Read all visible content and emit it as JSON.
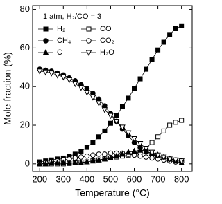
{
  "chart_data": {
    "type": "line",
    "annotation": "1 atm, H₂/CO = 3",
    "xlabel": "Temperature (°C)",
    "ylabel": "Mole fraction (%)",
    "x": [
      200,
      225,
      250,
      275,
      300,
      325,
      350,
      375,
      400,
      425,
      450,
      475,
      500,
      525,
      550,
      575,
      600,
      625,
      650,
      675,
      700,
      725,
      750,
      775,
      800
    ],
    "xlim": [
      170,
      845
    ],
    "xticks": [
      200,
      300,
      400,
      500,
      600,
      700,
      800
    ],
    "ylim": [
      -4,
      82
    ],
    "yticks": [
      0,
      20,
      40,
      60,
      80
    ],
    "legend": "upper left",
    "series": [
      {
        "name": "H₂",
        "color": "#000000",
        "marker": "square",
        "filled": true,
        "values": [
          1,
          1.5,
          2,
          2.5,
          3,
          4,
          5,
          6.5,
          8.5,
          11,
          14,
          17,
          21,
          25,
          29.5,
          34,
          39,
          44,
          49,
          54,
          59,
          63,
          67,
          70,
          71.5
        ]
      },
      {
        "name": "CO",
        "color": "#000000",
        "marker": "square",
        "filled": false,
        "values": [
          0,
          0,
          0,
          0,
          0,
          0.2,
          0.5,
          0.8,
          1,
          1.5,
          2,
          2.5,
          3,
          3.5,
          4,
          4.5,
          5,
          6,
          8,
          11,
          14,
          17,
          20,
          21.5,
          22.5
        ]
      },
      {
        "name": "CH₄",
        "color": "#000000",
        "marker": "circle",
        "filled": true,
        "values": [
          49,
          48.5,
          48,
          47,
          46,
          44.5,
          43,
          41,
          39,
          36.5,
          33.5,
          30,
          26,
          22,
          18,
          14.5,
          11,
          8.5,
          6.5,
          5,
          4,
          3,
          2.5,
          2,
          1.5
        ]
      },
      {
        "name": "CO₂",
        "color": "#000000",
        "marker": "circle",
        "filled": false,
        "values": [
          0,
          0.5,
          1,
          1.5,
          2,
          2.5,
          3,
          3.5,
          4,
          4.5,
          5,
          5,
          5.5,
          5.5,
          5.5,
          5,
          4.5,
          4,
          3.5,
          3,
          2.5,
          2,
          1.5,
          1,
          0.8
        ]
      },
      {
        "name": "C",
        "color": "#000000",
        "marker": "triangle",
        "filled": true,
        "values": [
          0,
          0,
          0.5,
          0.5,
          0.5,
          0.5,
          0.5,
          0.5,
          1,
          1.5,
          2,
          2.5,
          3,
          4,
          5,
          6,
          6.5,
          7,
          6.5,
          5.5,
          4.5,
          3.5,
          2.5,
          1.5,
          0.5
        ]
      },
      {
        "name": "H₂O",
        "color": "#000000",
        "marker": "triangle-down",
        "filled": false,
        "values": [
          48,
          47.5,
          47,
          46,
          45,
          43.5,
          41.5,
          39.5,
          37,
          34.5,
          31.5,
          28,
          25,
          22,
          19,
          16,
          13,
          10.5,
          8,
          6,
          4.5,
          3.5,
          2.5,
          2,
          1.5
        ]
      }
    ]
  }
}
